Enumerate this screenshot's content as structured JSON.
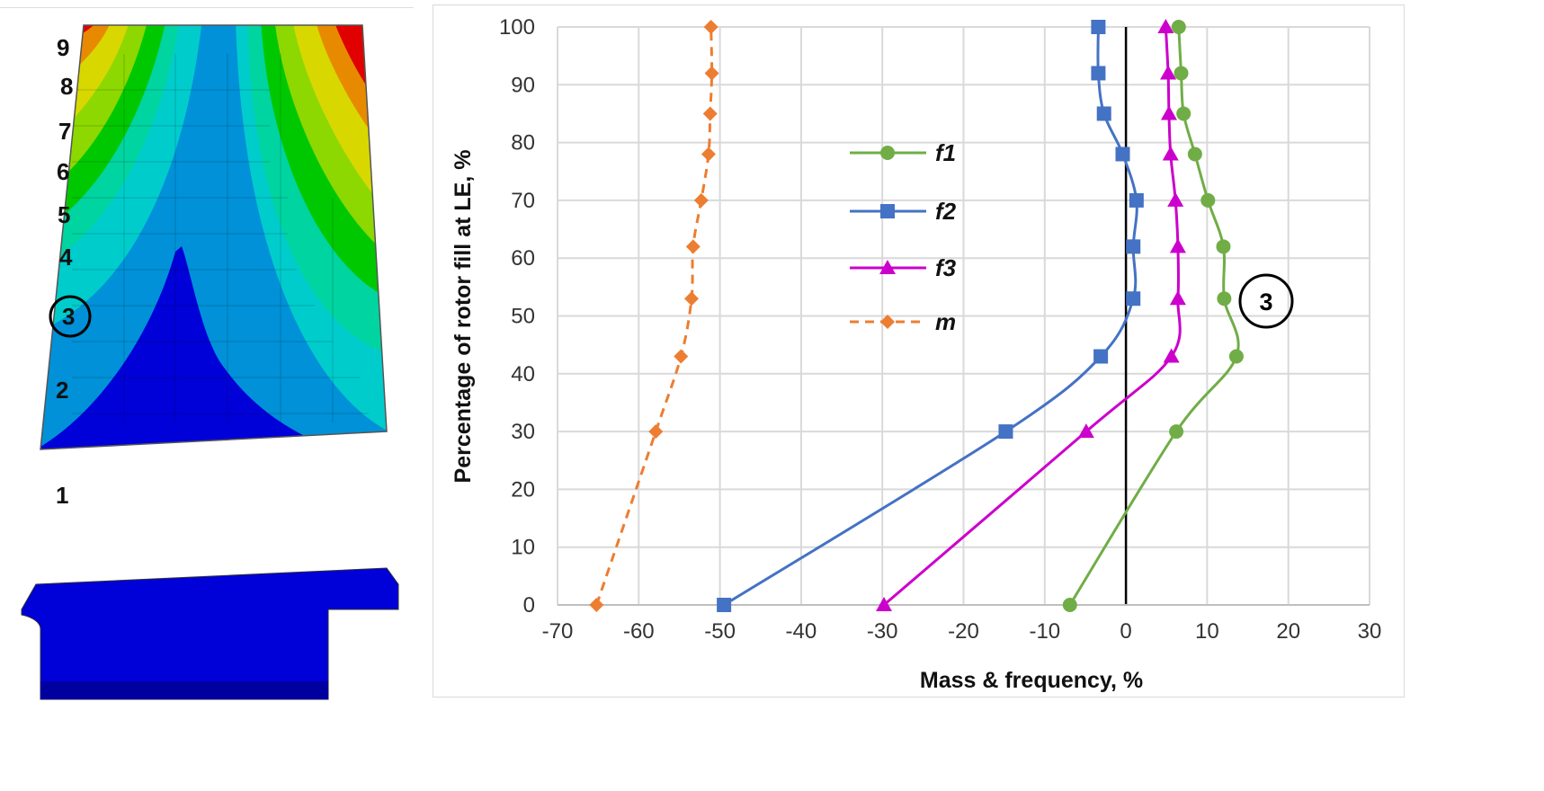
{
  "blade": {
    "labels": [
      "1",
      "2",
      "3",
      "4",
      "5",
      "6",
      "7",
      "8",
      "9"
    ],
    "highlighted_label": "3"
  },
  "chart_data": {
    "type": "line",
    "xlabel": "Mass & frequency, %",
    "ylabel": "Percentage of rotor fill at LE, %",
    "xlim": [
      -70,
      30
    ],
    "ylim": [
      0,
      100
    ],
    "xticks": [
      -70,
      -60,
      -50,
      -40,
      -30,
      -20,
      -10,
      0,
      10,
      20,
      30
    ],
    "yticks": [
      0,
      10,
      20,
      30,
      40,
      50,
      60,
      70,
      80,
      90,
      100
    ],
    "grid": true,
    "legend_position": "upper-center",
    "annotation": "3",
    "series": [
      {
        "name": "f1",
        "color": "#70ad47",
        "marker": "circle",
        "dash": false,
        "x": [
          -6.9,
          6.2,
          13.6,
          12.1,
          12.0,
          10.1,
          8.5,
          7.1,
          6.8,
          6.5
        ],
        "y": [
          0,
          30,
          43,
          53,
          62,
          70,
          78,
          85,
          92,
          100
        ]
      },
      {
        "name": "f2",
        "color": "#4472c4",
        "marker": "square",
        "dash": false,
        "x": [
          -49.5,
          -14.8,
          -3.1,
          0.9,
          0.9,
          1.3,
          -0.4,
          -2.7,
          -3.4,
          -3.4
        ],
        "y": [
          0,
          30,
          43,
          53,
          62,
          70,
          78,
          85,
          92,
          100
        ]
      },
      {
        "name": "f3",
        "color": "#cc00cc",
        "marker": "triangle",
        "dash": false,
        "x": [
          -29.8,
          -4.9,
          5.6,
          6.4,
          6.4,
          6.1,
          5.5,
          5.3,
          5.2,
          4.9
        ],
        "y": [
          0,
          30,
          43,
          53,
          62,
          70,
          78,
          85,
          92,
          100
        ]
      },
      {
        "name": "m",
        "color": "#ed7d31",
        "marker": "diamond",
        "dash": true,
        "x": [
          -65.2,
          -57.9,
          -54.8,
          -53.5,
          -53.3,
          -52.3,
          -51.4,
          -51.2,
          -51.0,
          -51.1
        ],
        "y": [
          0,
          30,
          43,
          53,
          62,
          70,
          78,
          85,
          92,
          100
        ]
      }
    ]
  }
}
